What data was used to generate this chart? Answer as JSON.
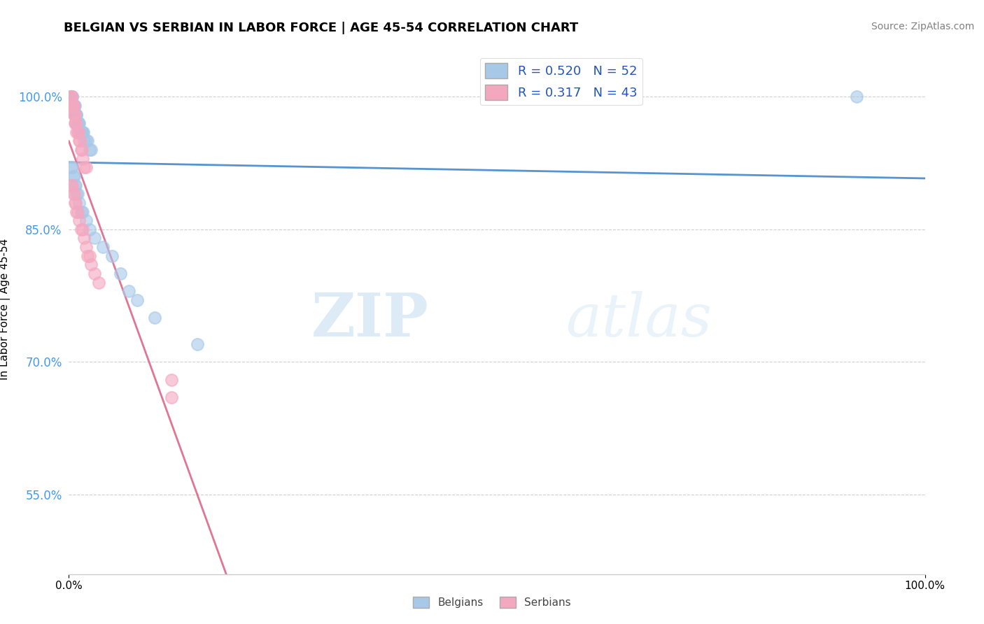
{
  "title": "BELGIAN VS SERBIAN IN LABOR FORCE | AGE 45-54 CORRELATION CHART",
  "source": "Source: ZipAtlas.com",
  "ylabel": "In Labor Force | Age 45-54",
  "xlim": [
    0.0,
    1.0
  ],
  "ylim": [
    0.46,
    1.06
  ],
  "yticks": [
    0.55,
    0.7,
    0.85,
    1.0
  ],
  "ytick_labels": [
    "55.0%",
    "70.0%",
    "85.0%",
    "100.0%"
  ],
  "xticks": [
    0.0,
    1.0
  ],
  "xtick_labels": [
    "0.0%",
    "100.0%"
  ],
  "belgian_R": 0.52,
  "belgian_N": 52,
  "serbian_R": 0.317,
  "serbian_N": 43,
  "belgian_color": "#a8c8e8",
  "serbian_color": "#f4a8c0",
  "belgian_line_color": "#4488cc",
  "serbian_line_color": "#dd6688",
  "watermark_zip": "ZIP",
  "watermark_atlas": "atlas",
  "background_color": "#ffffff",
  "grid_color": "#bbbbbb",
  "belgian_x": [
    0.002,
    0.003,
    0.003,
    0.004,
    0.004,
    0.005,
    0.005,
    0.006,
    0.006,
    0.007,
    0.007,
    0.008,
    0.008,
    0.009,
    0.009,
    0.01,
    0.01,
    0.011,
    0.011,
    0.012,
    0.013,
    0.014,
    0.015,
    0.016,
    0.017,
    0.018,
    0.02,
    0.022,
    0.024,
    0.026,
    0.003,
    0.004,
    0.005,
    0.006,
    0.007,
    0.008,
    0.009,
    0.01,
    0.012,
    0.014,
    0.016,
    0.02,
    0.024,
    0.03,
    0.04,
    0.05,
    0.06,
    0.07,
    0.08,
    0.1,
    0.15,
    0.92
  ],
  "belgian_y": [
    1.0,
    1.0,
    1.0,
    1.0,
    1.0,
    0.99,
    0.99,
    0.99,
    0.99,
    0.99,
    0.98,
    0.98,
    0.98,
    0.98,
    0.98,
    0.97,
    0.97,
    0.97,
    0.97,
    0.97,
    0.96,
    0.96,
    0.96,
    0.96,
    0.96,
    0.95,
    0.95,
    0.95,
    0.94,
    0.94,
    0.92,
    0.92,
    0.91,
    0.91,
    0.9,
    0.9,
    0.89,
    0.89,
    0.88,
    0.87,
    0.87,
    0.86,
    0.85,
    0.84,
    0.83,
    0.82,
    0.8,
    0.78,
    0.77,
    0.75,
    0.72,
    1.0
  ],
  "serbian_x": [
    0.002,
    0.003,
    0.003,
    0.004,
    0.004,
    0.005,
    0.005,
    0.006,
    0.006,
    0.007,
    0.007,
    0.008,
    0.008,
    0.009,
    0.01,
    0.011,
    0.012,
    0.013,
    0.014,
    0.015,
    0.016,
    0.018,
    0.02,
    0.003,
    0.004,
    0.005,
    0.006,
    0.007,
    0.008,
    0.009,
    0.01,
    0.012,
    0.014,
    0.016,
    0.018,
    0.02,
    0.022,
    0.024,
    0.026,
    0.03,
    0.035,
    0.12,
    0.12
  ],
  "serbian_y": [
    1.0,
    1.0,
    1.0,
    0.99,
    0.99,
    0.99,
    0.99,
    0.98,
    0.98,
    0.98,
    0.97,
    0.97,
    0.97,
    0.96,
    0.96,
    0.96,
    0.95,
    0.95,
    0.94,
    0.94,
    0.93,
    0.92,
    0.92,
    0.9,
    0.9,
    0.89,
    0.89,
    0.88,
    0.88,
    0.87,
    0.87,
    0.86,
    0.85,
    0.85,
    0.84,
    0.83,
    0.82,
    0.82,
    0.81,
    0.8,
    0.79,
    0.68,
    0.66
  ]
}
